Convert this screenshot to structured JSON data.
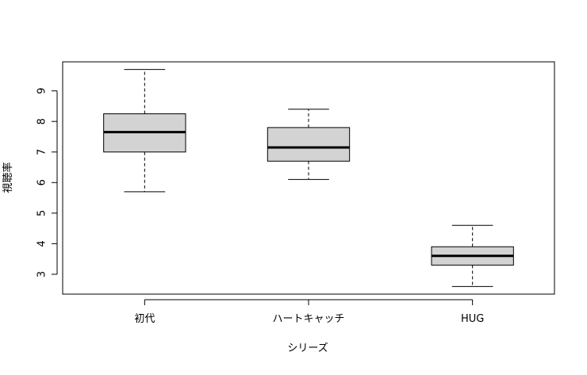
{
  "chart_data": {
    "type": "boxplot",
    "title": "",
    "xlabel": "シリーズ",
    "ylabel": "視聴率",
    "ylim": [
      2.35,
      9.95
    ],
    "yticks": [
      3,
      4,
      5,
      6,
      7,
      8,
      9
    ],
    "ytick_labels": [
      "3",
      "4",
      "5",
      "6",
      "7",
      "8",
      "9"
    ],
    "grid": false,
    "legend": "none",
    "categories": [
      "初代",
      "ハートキャッチ",
      "HUG"
    ],
    "boxes": [
      {
        "category": "初代",
        "whisker_low": 5.7,
        "q1": 7.0,
        "median": 7.65,
        "q3": 8.25,
        "whisker_high": 9.7
      },
      {
        "category": "ハートキャッチ",
        "whisker_low": 6.1,
        "q1": 6.7,
        "median": 7.15,
        "q3": 7.8,
        "whisker_high": 8.4
      },
      {
        "category": "HUG",
        "whisker_low": 2.6,
        "q1": 3.3,
        "median": 3.6,
        "q3": 3.9,
        "whisker_high": 4.6
      }
    ],
    "colors": {
      "box_fill": "#d3d3d3",
      "stroke": "#000000",
      "background": "#ffffff"
    }
  }
}
